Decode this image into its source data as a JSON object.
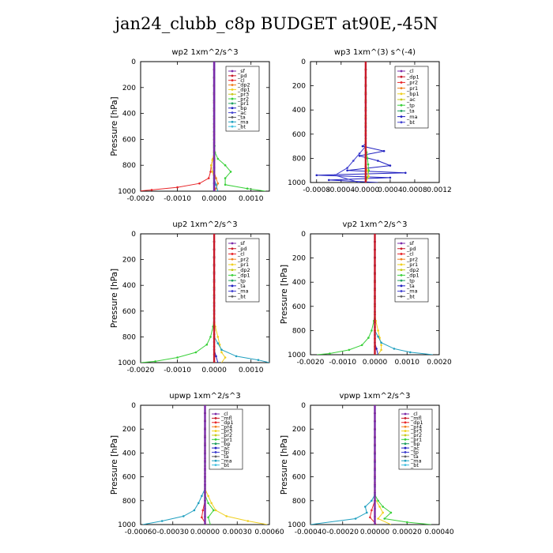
{
  "figure_title": "jan24_clubb_c8p  BUDGET at90E,-45N",
  "chart_data": [
    {
      "type": "line",
      "title": "wp2   1xm^2/s^3",
      "ylabel": "Pressure [hPa]",
      "xlim": [
        -0.002,
        0.0015
      ],
      "ylim": [
        1000,
        0
      ],
      "xticks": [
        -0.002,
        -0.001,
        0.0,
        0.001
      ],
      "xticklabels": [
        "-0.0020",
        "-0.0010",
        "0.0000",
        "0.0010"
      ],
      "yticks": [
        0,
        200,
        400,
        600,
        800,
        1000
      ],
      "legend": [
        "_sf",
        "_pd",
        "_cl",
        "_dp2",
        "_dp1",
        "_pr3",
        "_pr2",
        "_pr1",
        "_bp",
        "_ac",
        "_ta",
        "_ma",
        "_bt"
      ],
      "series": [
        {
          "name": "_sf",
          "color": "#1a1aa0",
          "p": [
            0,
            700,
            1000
          ],
          "x": [
            0,
            0,
            0
          ]
        },
        {
          "name": "_dp1",
          "color": "#e8262a",
          "p": [
            0,
            600,
            700,
            750,
            800,
            850,
            900,
            940,
            970,
            990,
            1000
          ],
          "x": [
            0,
            0,
            0,
            -3e-05,
            -8e-05,
            -0.0001,
            -0.00015,
            -0.0004,
            -0.001,
            -0.0017,
            -0.0021
          ]
        },
        {
          "name": "_bp",
          "color": "#3ad03a",
          "p": [
            0,
            600,
            700,
            750,
            800,
            850,
            900,
            950,
            980,
            1000
          ],
          "x": [
            0,
            0,
            2e-05,
            0.0001,
            0.0003,
            0.00045,
            0.0003,
            0.0003,
            0.0009,
            0.0014
          ]
        },
        {
          "name": "_ac",
          "color": "#f0d020",
          "p": [
            0,
            700,
            760,
            800,
            850,
            900,
            1000
          ],
          "x": [
            0,
            0,
            -5e-05,
            -8e-05,
            -5e-05,
            0,
            0
          ]
        },
        {
          "name": "_pr1",
          "color": "#f08020",
          "p": [
            0,
            850,
            900,
            940,
            980,
            1000
          ],
          "x": [
            0,
            0,
            5e-05,
            0.0001,
            5e-05,
            0
          ]
        },
        {
          "name": "_ma",
          "color": "#20a0c0",
          "p": [
            0,
            900,
            1000
          ],
          "x": [
            0,
            0,
            0.0001
          ]
        },
        {
          "name": "_pd",
          "color": "#7a2aa8",
          "p": [
            0,
            1000
          ],
          "x": [
            0,
            0
          ]
        }
      ]
    },
    {
      "type": "line",
      "title": "wp3   1xm^(3) s^(-4)",
      "ylabel": "",
      "xlim": [
        -0.0009,
        0.0012
      ],
      "ylim": [
        1000,
        0
      ],
      "xticks": [
        -0.0008,
        -0.0004,
        0.0,
        0.0004,
        0.0008,
        0.0012
      ],
      "xticklabels": [
        "-0.0008",
        "-0.0004",
        "-0.0000",
        "0.0004",
        "0.0008",
        "0.0012"
      ],
      "yticks": [
        0,
        200,
        400,
        600,
        800,
        1000
      ],
      "legend": [
        "_cl",
        "_dp1",
        "_pr2",
        "_pr1",
        "_bp1",
        "_ac",
        "_tp",
        "_ta",
        "_ma",
        "_bt"
      ],
      "series": [
        {
          "name": "_tp",
          "color": "#2020c0",
          "p": [
            0,
            680,
            700,
            740,
            780,
            820,
            860,
            900,
            920,
            940,
            960,
            980,
            1000
          ],
          "x": [
            0,
            0,
            -5e-05,
            0.0003,
            -0.0001,
            0.0002,
            0.0004,
            -0.0003,
            0.00065,
            -0.0008,
            0.0004,
            -0.0006,
            0.0002
          ]
        },
        {
          "name": "_ta",
          "color": "#4040d0",
          "p": [
            0,
            700,
            760,
            820,
            880,
            940,
            1000
          ],
          "x": [
            0,
            0,
            -0.0001,
            -0.0002,
            -0.0003,
            -0.0005,
            -0.0001
          ]
        },
        {
          "name": "_bp1",
          "color": "#3ad03a",
          "p": [
            0,
            700,
            800,
            900,
            960,
            1000
          ],
          "x": [
            0,
            0,
            3e-05,
            5e-05,
            3e-05,
            0
          ]
        },
        {
          "name": "_pr2",
          "color": "#f0d020",
          "p": [
            0,
            850,
            950,
            1000
          ],
          "x": [
            0,
            0,
            5e-05,
            0
          ]
        },
        {
          "name": "_cl",
          "color": "#c81a2a",
          "p": [
            0,
            1000
          ],
          "x": [
            0,
            0
          ]
        }
      ]
    },
    {
      "type": "line",
      "title": "up2   1xm^2/s^3",
      "ylabel": "Pressure [hPa]",
      "xlim": [
        -0.002,
        0.0015
      ],
      "ylim": [
        1000,
        0
      ],
      "xticks": [
        -0.002,
        -0.001,
        0.0,
        0.001
      ],
      "xticklabels": [
        "-0.0020",
        "-0.0010",
        "0.0000",
        "0.0010"
      ],
      "yticks": [
        0,
        200,
        400,
        600,
        800,
        1000
      ],
      "legend": [
        "_sf",
        "_pd",
        "_cl",
        "_pr2",
        "_pr1",
        "_dp2",
        "_dp1",
        "_tp",
        "_ta",
        "_ma",
        "_bt"
      ],
      "series": [
        {
          "name": "_dp1",
          "color": "#3ad03a",
          "p": [
            0,
            650,
            720,
            800,
            860,
            920,
            960,
            990,
            1000
          ],
          "x": [
            0,
            0,
            -3e-05,
            -0.0001,
            -0.0002,
            -0.0005,
            -0.001,
            -0.0016,
            -0.002
          ]
        },
        {
          "name": "_pr1",
          "color": "#f0d020",
          "p": [
            0,
            650,
            720,
            800,
            860,
            920,
            960,
            1000
          ],
          "x": [
            0,
            0,
            3e-05,
            0.0001,
            0.00015,
            0.0002,
            0.0003,
            0.0002
          ]
        },
        {
          "name": "_ma",
          "color": "#20a0c0",
          "p": [
            0,
            800,
            900,
            950,
            980,
            1000
          ],
          "x": [
            0,
            0,
            0.0002,
            0.0006,
            0.0012,
            0.0015
          ]
        },
        {
          "name": "_tp",
          "color": "#2020c0",
          "p": [
            0,
            900,
            1000
          ],
          "x": [
            0,
            0,
            0.0001
          ]
        },
        {
          "name": "_cl",
          "color": "#c81a2a",
          "p": [
            0,
            1000
          ],
          "x": [
            0,
            0
          ]
        }
      ]
    },
    {
      "type": "line",
      "title": "vp2   1xm^2/s^3",
      "ylabel": "Pressure [hPa]",
      "xlim": [
        -0.002,
        0.002
      ],
      "ylim": [
        1000,
        0
      ],
      "xticks": [
        -0.002,
        -0.001,
        0.0,
        0.001,
        0.002
      ],
      "xticklabels": [
        "-0.0020",
        "-0.0010",
        "0.0000",
        "0.0010",
        "0.0020"
      ],
      "yticks": [
        0,
        200,
        400,
        600,
        800,
        1000
      ],
      "legend": [
        "_sf",
        "_pd",
        "_cl",
        "_pr2",
        "_pr1",
        "_dp2",
        "_dp1",
        "_tp",
        "_ta",
        "_ma",
        "_bt"
      ],
      "series": [
        {
          "name": "_dp1",
          "color": "#3ad03a",
          "p": [
            0,
            650,
            720,
            800,
            860,
            920,
            960,
            990,
            1000
          ],
          "x": [
            0,
            0,
            -3e-05,
            -0.0001,
            -0.0002,
            -0.0004,
            -0.0008,
            -0.0014,
            -0.0018
          ]
        },
        {
          "name": "_pr1",
          "color": "#f0d020",
          "p": [
            0,
            650,
            720,
            800,
            860,
            920,
            960,
            1000
          ],
          "x": [
            0,
            0,
            3e-05,
            0.0001,
            0.00015,
            0.0002,
            0.0002,
            0.0001
          ]
        },
        {
          "name": "_ma",
          "color": "#20a0c0",
          "p": [
            0,
            800,
            900,
            950,
            980,
            1000
          ],
          "x": [
            0,
            0,
            0.0002,
            0.0006,
            0.0011,
            0.0018
          ]
        },
        {
          "name": "_tp",
          "color": "#2020c0",
          "p": [
            0,
            900,
            1000
          ],
          "x": [
            0,
            0,
            0.0001
          ]
        },
        {
          "name": "_cl",
          "color": "#c81a2a",
          "p": [
            0,
            1000
          ],
          "x": [
            0,
            0
          ]
        }
      ]
    },
    {
      "type": "line",
      "title": "upwp   1xm^2/s^3",
      "ylabel": "Pressure [hPa]",
      "xlim": [
        -0.0006,
        0.0006
      ],
      "ylim": [
        1000,
        0
      ],
      "xticks": [
        -0.0006,
        -0.0003,
        0.0,
        0.0003,
        0.0006
      ],
      "xticklabels": [
        "-0.00060",
        "-0.00030",
        "0.00000",
        "0.00030",
        "0.00060"
      ],
      "yticks": [
        0,
        200,
        400,
        600,
        800,
        1000
      ],
      "legend": [
        "_cl",
        "_mfl",
        "_dp1",
        "_pr4",
        "_pr3",
        "_pr2",
        "_pr1",
        "_bp",
        "_ac",
        "_tp",
        "_ta",
        "_ma",
        "_bt"
      ],
      "series": [
        {
          "name": "_ma",
          "color": "#20a0c0",
          "p": [
            0,
            700,
            760,
            820,
            880,
            930,
            970,
            1000
          ],
          "x": [
            0,
            0,
            -3e-05,
            -6e-05,
            -0.0001,
            -0.0002,
            -0.0004,
            -0.00058
          ]
        },
        {
          "name": "_pr1",
          "color": "#f0d020",
          "p": [
            0,
            700,
            760,
            820,
            880,
            930,
            970,
            1000
          ],
          "x": [
            0,
            0,
            3e-05,
            6e-05,
            0.0001,
            0.0002,
            0.0004,
            0.00058
          ]
        },
        {
          "name": "_ac",
          "color": "#3ad03a",
          "p": [
            0,
            750,
            820,
            880,
            940,
            1000
          ],
          "x": [
            0,
            0,
            3e-05,
            8e-05,
            3e-05,
            5e-05
          ]
        },
        {
          "name": "_dp1",
          "color": "#e8262a",
          "p": [
            0,
            800,
            880,
            940,
            1000
          ],
          "x": [
            0,
            0,
            -2e-05,
            -3e-05,
            1e-05
          ]
        },
        {
          "name": "_cl",
          "color": "#7a2aa8",
          "p": [
            0,
            1000
          ],
          "x": [
            0,
            0
          ]
        }
      ]
    },
    {
      "type": "line",
      "title": "vpwp   1xm^2/s^3",
      "ylabel": "Pressure [hPa]",
      "xlim": [
        -0.0004,
        0.0004
      ],
      "ylim": [
        1000,
        0
      ],
      "xticks": [
        -0.0004,
        -0.0002,
        0.0,
        0.0002,
        0.0004
      ],
      "xticklabels": [
        "-0.00040",
        "-0.00020",
        "0.00000",
        "0.00020",
        "0.00040"
      ],
      "yticks": [
        0,
        200,
        400,
        600,
        800,
        1000
      ],
      "legend": [
        "_cl",
        "_mfl",
        "_dp1",
        "_pr4",
        "_pr3",
        "_pr2",
        "_pr1",
        "_bp",
        "_ac",
        "_tp",
        "_ta",
        "_ma",
        "_bt"
      ],
      "series": [
        {
          "name": "_ma",
          "color": "#20a0c0",
          "p": [
            0,
            750,
            800,
            850,
            900,
            950,
            1000
          ],
          "x": [
            0,
            0,
            -2e-05,
            -6e-05,
            -5e-05,
            -0.00012,
            -0.0004
          ]
        },
        {
          "name": "_ac",
          "color": "#3ad03a",
          "p": [
            0,
            750,
            800,
            850,
            900,
            950,
            980,
            1000
          ],
          "x": [
            0,
            0,
            2e-05,
            5e-05,
            0.0001,
            6e-05,
            0.0002,
            0.00035
          ]
        },
        {
          "name": "_pr1",
          "color": "#f0d020",
          "p": [
            0,
            780,
            850,
            900,
            950,
            1000
          ],
          "x": [
            0,
            0,
            3e-05,
            5e-05,
            2e-05,
            0.0001
          ]
        },
        {
          "name": "_dp1",
          "color": "#e8262a",
          "p": [
            0,
            800,
            880,
            940,
            1000
          ],
          "x": [
            0,
            0,
            -2e-05,
            -3e-05,
            1e-05
          ]
        },
        {
          "name": "_cl",
          "color": "#7a2aa8",
          "p": [
            0,
            1000
          ],
          "x": [
            0,
            0
          ]
        }
      ]
    }
  ]
}
